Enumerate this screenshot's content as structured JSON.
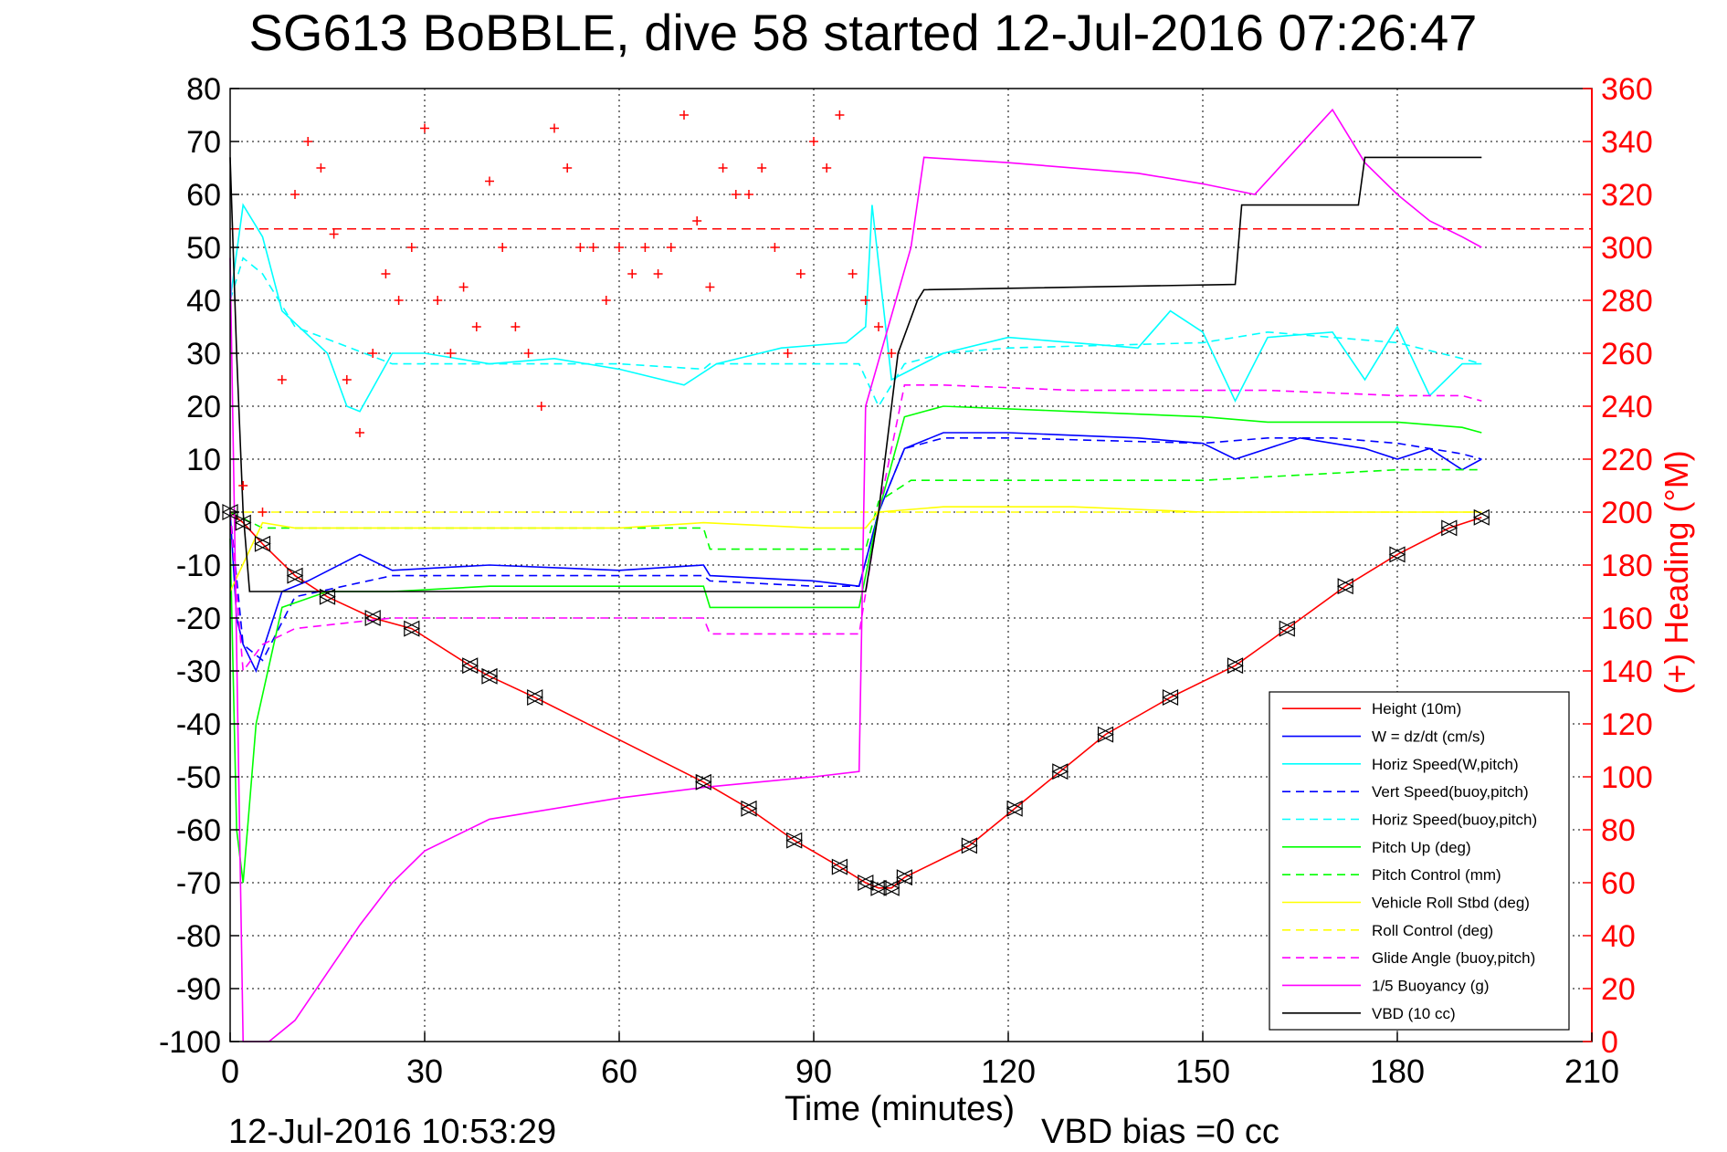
{
  "chart_data": {
    "type": "line",
    "title": "SG613 BoBBLE, dive 58 started 12-Jul-2016 07:26:47",
    "xlabel": "Time (minutes)",
    "ylabel": "",
    "y2label": "(+) Heading (°M)",
    "footer_left": "12-Jul-2016 10:53:29",
    "footer_right": "VBD bias =0 cc",
    "xlim": [
      0,
      210
    ],
    "ylim": [
      -100,
      80
    ],
    "y2lim": [
      0,
      360
    ],
    "xticks": [
      "0",
      "30",
      "60",
      "90",
      "120",
      "150",
      "180",
      "210"
    ],
    "yticks": [
      "80",
      "70",
      "60",
      "50",
      "40",
      "30",
      "20",
      "10",
      "0",
      "-10",
      "-20",
      "-30",
      "-40",
      "-50",
      "-60",
      "-70",
      "-80",
      "-90",
      "-100"
    ],
    "y2ticks": [
      "360",
      "340",
      "320",
      "300",
      "280",
      "260",
      "240",
      "220",
      "200",
      "180",
      "160",
      "140",
      "120",
      "100",
      "80",
      "60",
      "40",
      "20",
      "0"
    ],
    "grid": true,
    "legend_position": "bottom-right",
    "reference_heading": 307,
    "series": [
      {
        "name": "Height (10m)",
        "color": "#ff0000",
        "style": "solid",
        "x": [
          0,
          2,
          5,
          10,
          15,
          22,
          28,
          37,
          40,
          47,
          73,
          80,
          87,
          94,
          98,
          100,
          102,
          104,
          114,
          121,
          128,
          135,
          145,
          155,
          163,
          172,
          180,
          188,
          193
        ],
        "y": [
          0,
          -2,
          -6,
          -12,
          -16,
          -20,
          -22,
          -29,
          -31,
          -35,
          -51,
          -56,
          -62,
          -67,
          -70,
          -71,
          -71,
          -69,
          -63,
          -56,
          -49,
          -42,
          -35,
          -29,
          -22,
          -14,
          -8,
          -3,
          -1
        ]
      },
      {
        "name": "W = dz/dt (cm/s)",
        "color": "#0000ff",
        "style": "solid",
        "x": [
          0,
          1,
          2,
          4,
          8,
          12,
          20,
          25,
          40,
          60,
          73,
          74,
          90,
          97,
          100,
          104,
          110,
          120,
          140,
          150,
          155,
          165,
          170,
          175,
          180,
          185,
          190,
          193
        ],
        "y": [
          0,
          -20,
          -25,
          -30,
          -15,
          -13,
          -8,
          -11,
          -10,
          -11,
          -10,
          -12,
          -13,
          -14,
          0,
          12,
          15,
          15,
          14,
          13,
          10,
          14,
          13,
          12,
          10,
          12,
          8,
          10
        ]
      },
      {
        "name": "Horiz Speed(W,pitch)",
        "color": "#00ffff",
        "style": "solid",
        "x": [
          0,
          2,
          5,
          8,
          15,
          18,
          20,
          25,
          30,
          40,
          50,
          60,
          70,
          75,
          85,
          95,
          98,
          99,
          102,
          110,
          120,
          140,
          145,
          150,
          155,
          160,
          170,
          175,
          180,
          185,
          190,
          193
        ],
        "y": [
          40,
          58,
          52,
          38,
          30,
          20,
          19,
          30,
          30,
          28,
          29,
          27,
          24,
          28,
          31,
          32,
          35,
          58,
          25,
          30,
          33,
          31,
          38,
          34,
          21,
          33,
          34,
          25,
          35,
          22,
          28,
          28
        ]
      },
      {
        "name": "Vert Speed(buoy,pitch)",
        "color": "#0000ff",
        "style": "dashed",
        "x": [
          0,
          2,
          5,
          10,
          25,
          40,
          60,
          73,
          74,
          90,
          97,
          100,
          104,
          110,
          120,
          150,
          160,
          170,
          180,
          190,
          193
        ],
        "y": [
          0,
          -25,
          -28,
          -16,
          -12,
          -12,
          -12,
          -12,
          -13,
          -14,
          -14,
          0,
          12,
          14,
          14,
          13,
          14,
          14,
          13,
          11,
          10
        ]
      },
      {
        "name": "Horiz Speed(buoy,pitch)",
        "color": "#00ffff",
        "style": "dashed",
        "x": [
          0,
          2,
          5,
          10,
          25,
          40,
          60,
          73,
          74,
          90,
          97,
          100,
          104,
          110,
          120,
          150,
          160,
          170,
          180,
          190,
          193
        ],
        "y": [
          40,
          48,
          45,
          35,
          28,
          28,
          28,
          27,
          28,
          28,
          28,
          20,
          28,
          30,
          31,
          32,
          34,
          33,
          32,
          29,
          28
        ]
      },
      {
        "name": "Pitch Up (deg)",
        "color": "#00ff00",
        "style": "solid",
        "x": [
          0,
          1,
          2,
          4,
          8,
          15,
          25,
          40,
          60,
          73,
          74,
          90,
          97,
          100,
          104,
          110,
          130,
          150,
          160,
          180,
          190,
          193
        ],
        "y": [
          -5,
          -60,
          -70,
          -40,
          -18,
          -15,
          -15,
          -14,
          -14,
          -14,
          -18,
          -18,
          -18,
          0,
          18,
          20,
          19,
          18,
          17,
          17,
          16,
          15
        ]
      },
      {
        "name": "Pitch Control (mm)",
        "color": "#00ff00",
        "style": "dashed",
        "x": [
          0,
          5,
          10,
          25,
          40,
          60,
          73,
          74,
          90,
          98,
          100,
          105,
          130,
          150,
          180,
          193
        ],
        "y": [
          0,
          -3,
          -3,
          -3,
          -3,
          -3,
          -3,
          -7,
          -7,
          -7,
          2,
          6,
          6,
          6,
          8,
          8
        ]
      },
      {
        "name": "Vehicle Roll Stbd (deg)",
        "color": "#ffff00",
        "style": "solid",
        "x": [
          0,
          5,
          10,
          25,
          40,
          60,
          73,
          90,
          98,
          100,
          110,
          130,
          150,
          160,
          180,
          193
        ],
        "y": [
          -15,
          -2,
          -3,
          -3,
          -3,
          -3,
          -2,
          -3,
          -3,
          0,
          1,
          1,
          0,
          0,
          0,
          0
        ]
      },
      {
        "name": "Roll Control (deg)",
        "color": "#ffff00",
        "style": "dashed",
        "x": [
          0,
          5,
          10,
          25,
          40,
          60,
          73,
          90,
          98,
          100,
          110,
          130,
          150,
          160,
          180,
          193
        ],
        "y": [
          0,
          0,
          0,
          0,
          0,
          0,
          0,
          0,
          0,
          0,
          0,
          0,
          0,
          0,
          0,
          0
        ]
      },
      {
        "name": "Glide Angle (buoy,pitch)",
        "color": "#ff00ff",
        "style": "dashed",
        "x": [
          0,
          2,
          5,
          10,
          25,
          40,
          60,
          73,
          74,
          90,
          97,
          100,
          104,
          110,
          130,
          150,
          160,
          180,
          190,
          193
        ],
        "y": [
          0,
          -30,
          -25,
          -22,
          -20,
          -20,
          -20,
          -20,
          -23,
          -23,
          -23,
          0,
          24,
          24,
          23,
          23,
          23,
          22,
          22,
          21
        ]
      },
      {
        "name": "1/5 Buoyancy (g)",
        "color": "#ff00ff",
        "style": "solid",
        "x": [
          0,
          2,
          6,
          10,
          15,
          20,
          25,
          30,
          40,
          60,
          73,
          90,
          97,
          98,
          105,
          107,
          120,
          140,
          150,
          158,
          170,
          175,
          180,
          185,
          190,
          193
        ],
        "y": [
          48,
          -100,
          -100,
          -96,
          -87,
          -78,
          -70,
          -64,
          -58,
          -54,
          -52,
          -50,
          -49,
          20,
          50,
          67,
          66,
          64,
          62,
          60,
          76,
          66,
          60,
          55,
          52,
          50
        ]
      },
      {
        "name": "VBD (10 cc)",
        "color": "#000000",
        "style": "solid",
        "x": [
          0,
          1,
          2,
          3,
          10,
          30,
          60,
          90,
          98,
          100,
          103,
          106,
          107,
          155,
          156,
          174,
          175,
          193
        ],
        "y": [
          67,
          30,
          0,
          -15,
          -15,
          -15,
          -15,
          -15,
          -15,
          0,
          30,
          40,
          42,
          43,
          58,
          58,
          67,
          67
        ]
      }
    ],
    "heading_series": {
      "name": "Heading (°M)",
      "color": "#ff0000",
      "marker": "+",
      "x": [
        2,
        5,
        8,
        10,
        12,
        14,
        16,
        18,
        20,
        22,
        24,
        26,
        28,
        30,
        32,
        34,
        36,
        38,
        40,
        42,
        44,
        46,
        48,
        50,
        52,
        54,
        56,
        58,
        60,
        62,
        64,
        66,
        68,
        70,
        72,
        74,
        76,
        78,
        80,
        82,
        84,
        86,
        88,
        90,
        92,
        94,
        96,
        98,
        100,
        102
      ],
      "y": [
        210,
        200,
        250,
        320,
        340,
        330,
        305,
        250,
        230,
        260,
        290,
        280,
        300,
        345,
        280,
        260,
        285,
        270,
        325,
        300,
        270,
        260,
        240,
        345,
        330,
        300,
        300,
        280,
        300,
        290,
        300,
        290,
        300,
        350,
        310,
        285,
        330,
        320,
        320,
        330,
        300,
        260,
        290,
        340,
        330,
        350,
        290,
        280,
        270,
        260
      ]
    }
  }
}
